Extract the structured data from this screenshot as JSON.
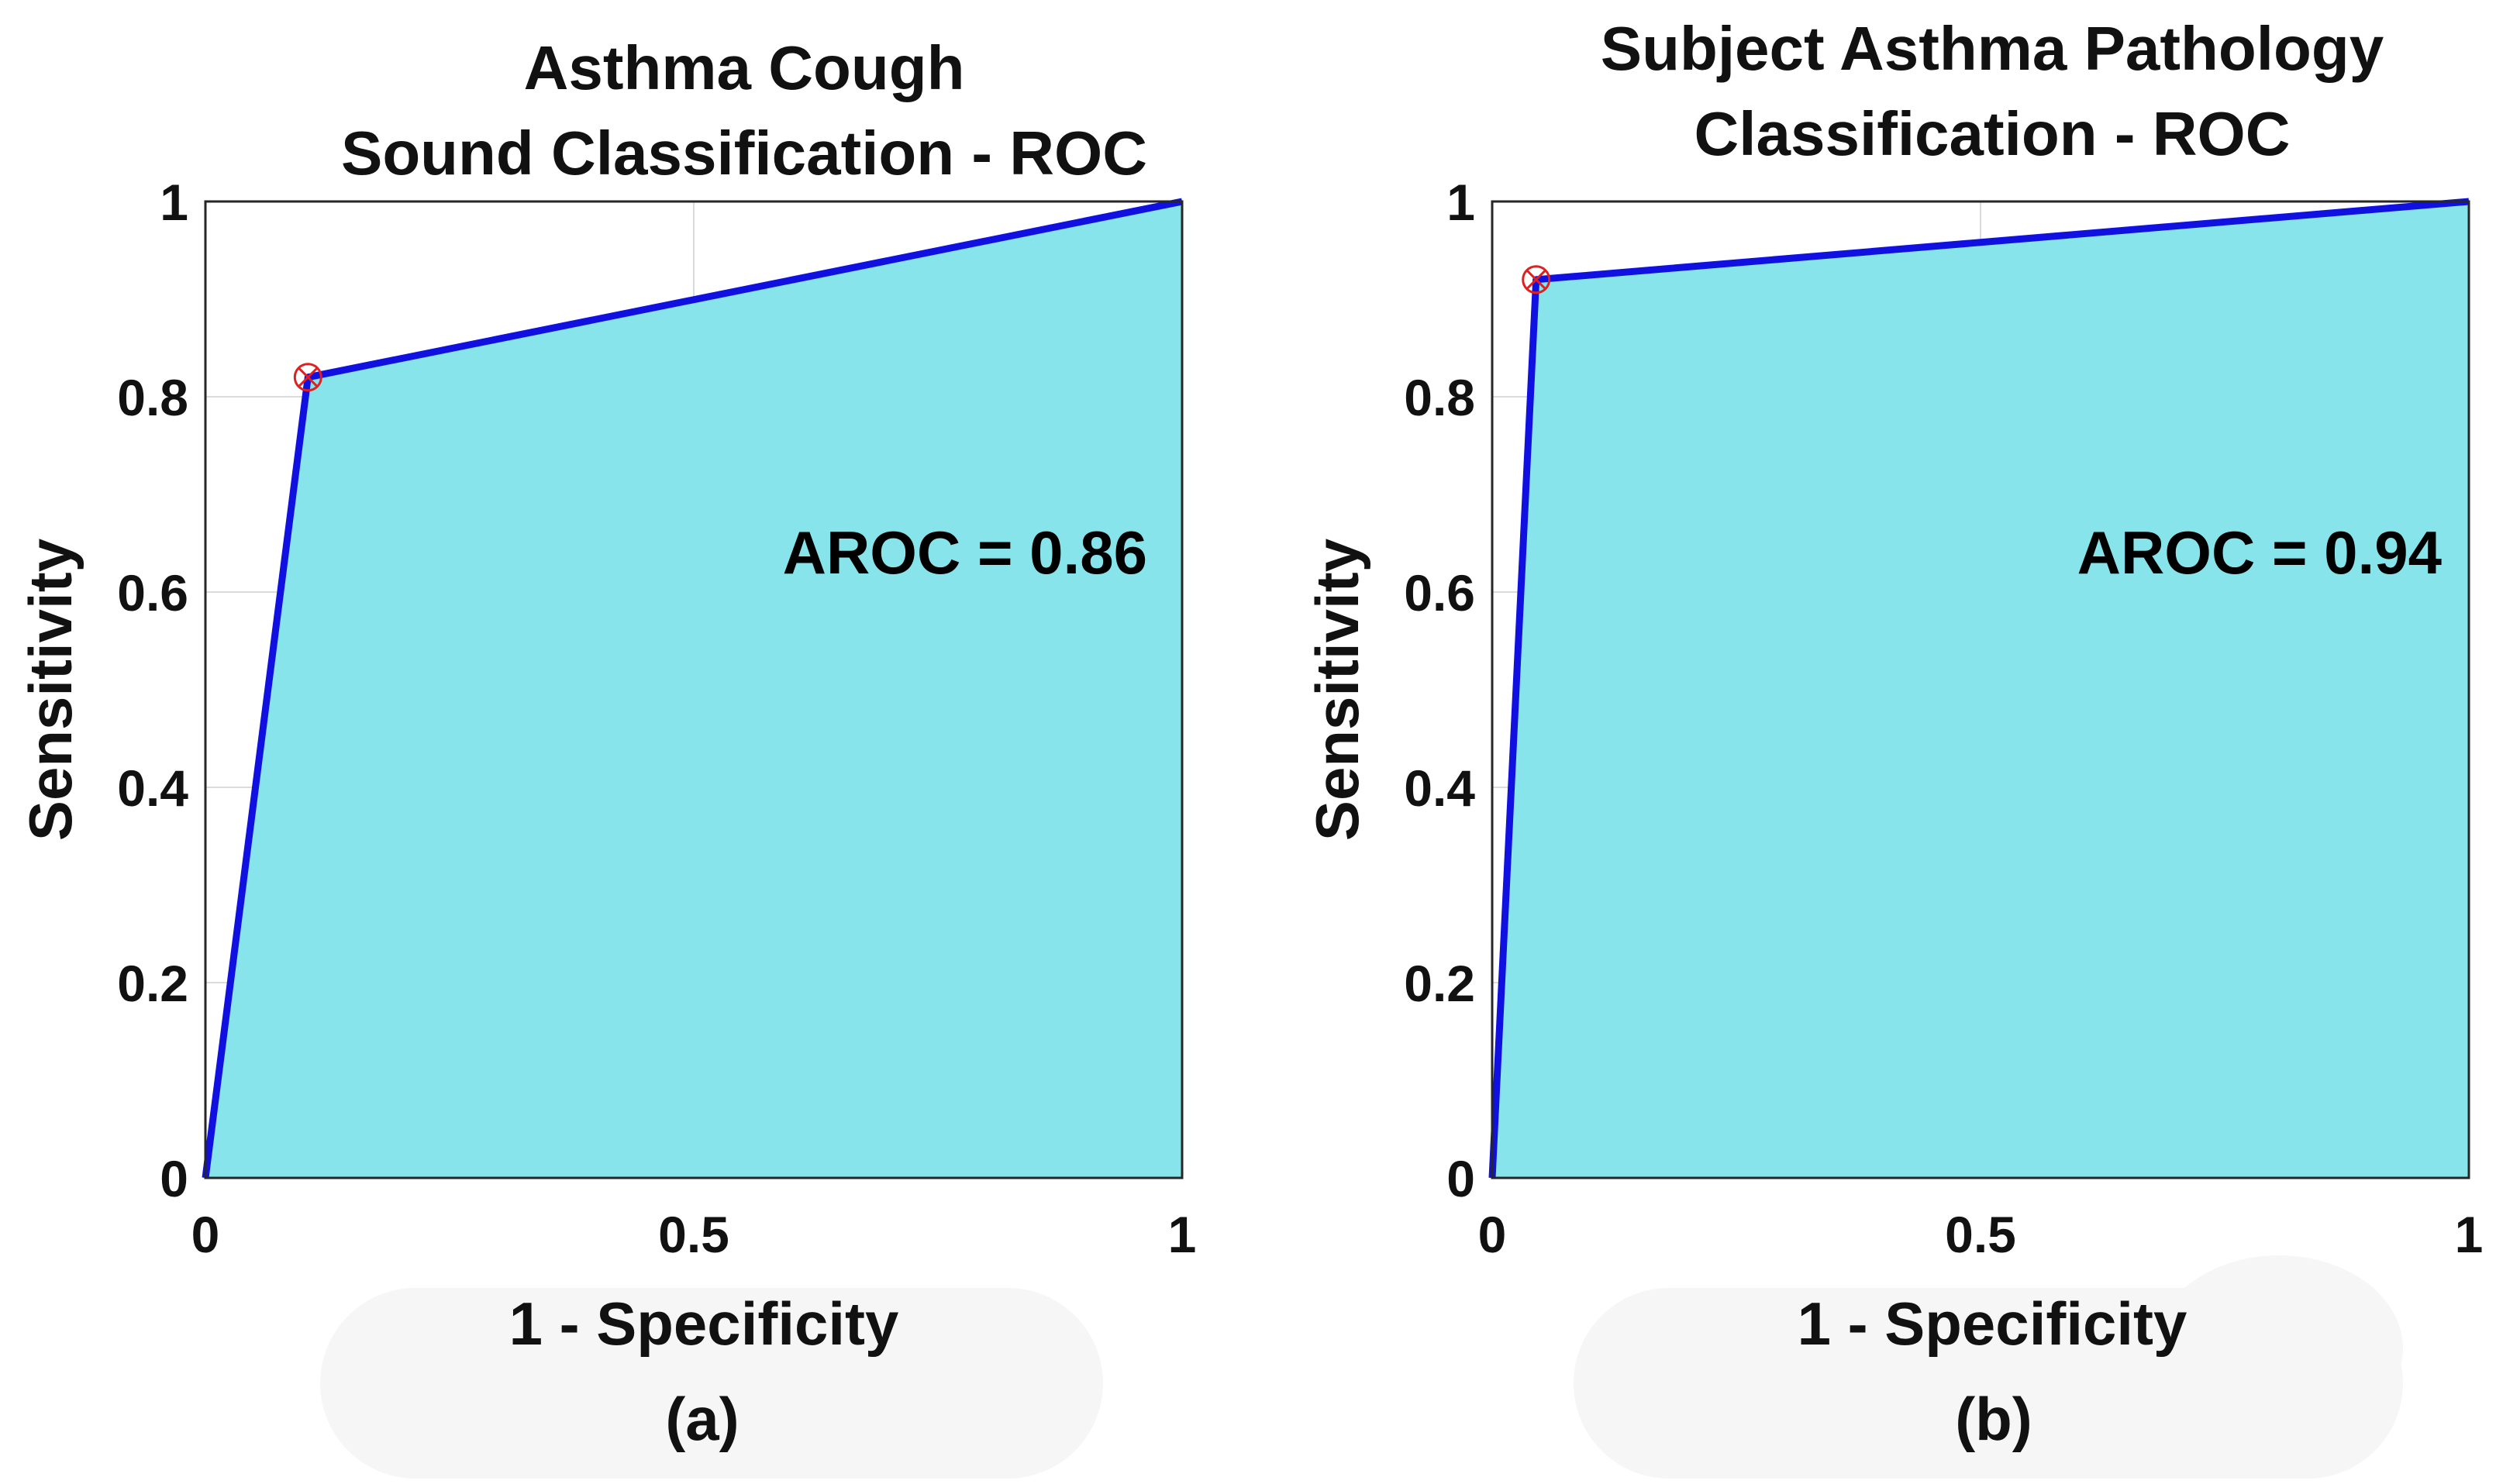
{
  "chart_data": [
    {
      "type": "area",
      "panel": "(a)",
      "title": [
        "Asthma Cough",
        "Sound Classification - ROC"
      ],
      "xlabel": "1 - Specificity",
      "ylabel": "Sensitivity",
      "caption": "(a)",
      "xlim": [
        0,
        1
      ],
      "ylim": [
        0,
        1
      ],
      "xticks": [
        0,
        0.5,
        1
      ],
      "xtick_labels": [
        "0",
        "0.5",
        "1"
      ],
      "yticks": [
        0,
        0.2,
        0.4,
        0.6,
        0.8,
        1
      ],
      "ytick_labels": [
        "0",
        "0.2",
        "0.4",
        "0.6",
        "0.8",
        "1"
      ],
      "grid": true,
      "series": [
        {
          "name": "ROC",
          "x": [
            0,
            0.105,
            1
          ],
          "y": [
            0,
            0.82,
            1
          ]
        }
      ],
      "operating_point": {
        "x": 0.105,
        "y": 0.82
      },
      "annotation": "AROC = 0.86",
      "colors": {
        "fill": "#86e4ea",
        "line": "#1010e0",
        "marker": "#e02020",
        "grid": "#d9dcdd"
      }
    },
    {
      "type": "area",
      "panel": "(b)",
      "title": [
        "Subject Asthma Pathology",
        "Classification - ROC"
      ],
      "xlabel": "1 - Specificity",
      "ylabel": "Sensitivity",
      "caption": "(b)",
      "xlim": [
        0,
        1
      ],
      "ylim": [
        0,
        1
      ],
      "xticks": [
        0,
        0.5,
        1
      ],
      "xtick_labels": [
        "0",
        "0.5",
        "1"
      ],
      "yticks": [
        0,
        0.2,
        0.4,
        0.6,
        0.8,
        1
      ],
      "ytick_labels": [
        "0",
        "0.2",
        "0.4",
        "0.6",
        "0.8",
        "1"
      ],
      "grid": true,
      "series": [
        {
          "name": "ROC",
          "x": [
            0,
            0.045,
            1
          ],
          "y": [
            0,
            0.92,
            1
          ]
        }
      ],
      "operating_point": {
        "x": 0.045,
        "y": 0.92
      },
      "annotation": "AROC = 0.94",
      "colors": {
        "fill": "#86e4ea",
        "line": "#1010e0",
        "marker": "#e02020",
        "grid": "#d9dcdd"
      }
    }
  ]
}
